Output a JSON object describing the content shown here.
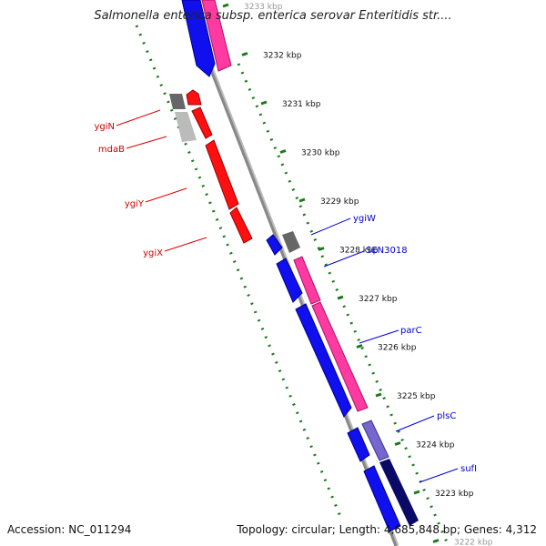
{
  "header": {
    "title": "Salmonella enterica subsp. enterica serovar Enteritidis str...."
  },
  "footer": {
    "accession": "Accession: NC_011294",
    "summary": "Topology: circular; Length: 4,685,848 bp; Genes: 4,312"
  },
  "ticks": [
    {
      "label": "3233 kbp",
      "kbp": 3233
    },
    {
      "label": "3232 kbp",
      "kbp": 3232
    },
    {
      "label": "3231 kbp",
      "kbp": 3231
    },
    {
      "label": "3230 kbp",
      "kbp": 3230
    },
    {
      "label": "3229 kbp",
      "kbp": 3229
    },
    {
      "label": "3228 kbp",
      "kbp": 3228
    },
    {
      "label": "3227 kbp",
      "kbp": 3227
    },
    {
      "label": "3226 kbp",
      "kbp": 3226
    },
    {
      "label": "3225 kbp",
      "kbp": 3225
    },
    {
      "label": "3224 kbp",
      "kbp": 3224
    },
    {
      "label": "3223 kbp",
      "kbp": 3223
    },
    {
      "label": "3222 kbp",
      "kbp": 3222
    }
  ],
  "gene_labels": [
    {
      "name": "ygiN",
      "color": "#cc0000"
    },
    {
      "name": "mdaB",
      "color": "#cc0000"
    },
    {
      "name": "ygiY",
      "color": "#cc0000"
    },
    {
      "name": "ygiX",
      "color": "#cc0000"
    },
    {
      "name": "ygiW",
      "color": "#0000cc"
    },
    {
      "name": "SEN3018",
      "color": "#0000cc"
    },
    {
      "name": "parC",
      "color": "#0000cc"
    },
    {
      "name": "plsC",
      "color": "#0000cc"
    },
    {
      "name": "sufI",
      "color": "#0000cc"
    }
  ],
  "colors": {
    "backbone": "#999999",
    "tick_dots": "#1a7a1a",
    "forward_cds": "#0000ff",
    "reverse_cds": "#ff0000",
    "pink_feature": "#ff3aa0",
    "gray_feature": "#666666",
    "light_gray_feature": "#bbbbbb",
    "purple_feature": "#7766cc",
    "navy_feature": "#0a0a66"
  }
}
